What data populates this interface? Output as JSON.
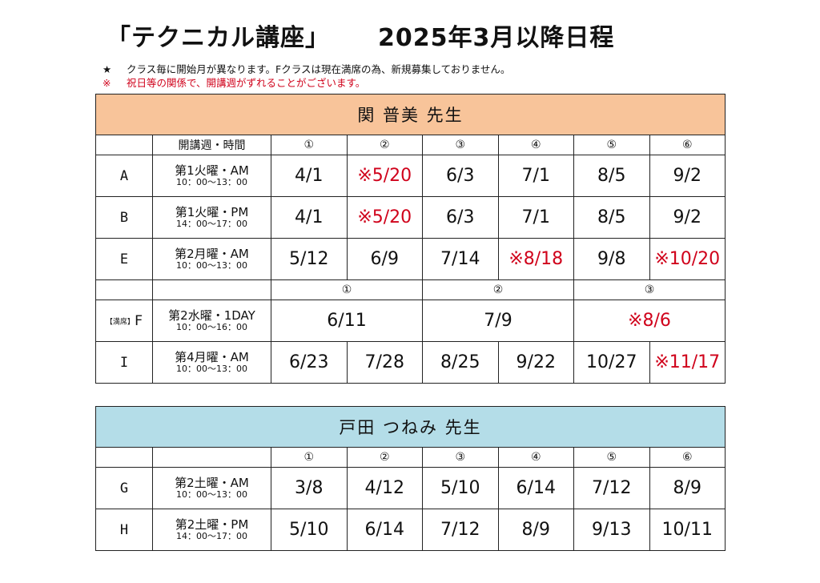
{
  "title": "「テクニカル講座」",
  "subtitle": "2025年3月以降日程",
  "notes": [
    {
      "mark": "★",
      "text": "クラス毎に開始月が異なります。Fクラスは現在満席の為、新規募集しておりません。"
    },
    {
      "mark": "※",
      "text": "祝日等の関係で、開講週がずれることがございます。"
    }
  ],
  "colors": {
    "teacher1_bg": "#f8c49a",
    "teacher2_bg": "#b4dde8",
    "highlight": "#d0021b"
  },
  "teacher1": {
    "name": "関 普美 先生",
    "header_label": "開講週・時間",
    "numbers": [
      "①",
      "②",
      "③",
      "④",
      "⑤",
      "⑥"
    ],
    "rows": [
      {
        "cls": "A",
        "day": "第1火曜・AM",
        "time": "10：00〜13：00",
        "dates": [
          "4/1",
          "※5/20",
          "6/3",
          "7/1",
          "8/5",
          "9/2"
        ]
      },
      {
        "cls": "B",
        "day": "第1火曜・PM",
        "time": "14：00〜17：00",
        "dates": [
          "4/1",
          "※5/20",
          "6/3",
          "7/1",
          "8/5",
          "9/2"
        ]
      },
      {
        "cls": "E",
        "day": "第2月曜・AM",
        "time": "10：00〜13：00",
        "dates": [
          "5/12",
          "6/9",
          "7/14",
          "※8/18",
          "9/8",
          "※10/20"
        ]
      }
    ],
    "f_numbers": [
      "①",
      "②",
      "③"
    ],
    "f_row": {
      "badge": "【満席】",
      "cls": "F",
      "day": "第2水曜・1DAY",
      "time": "10：00〜16：00",
      "dates": [
        "6/11",
        "7/9",
        "※8/6"
      ]
    },
    "i_row": {
      "cls": "I",
      "day": "第4月曜・AM",
      "time": "10：00〜13：00",
      "dates": [
        "6/23",
        "7/28",
        "8/25",
        "9/22",
        "10/27",
        "※11/17"
      ]
    }
  },
  "teacher2": {
    "name": "戸田 つねみ 先生",
    "numbers": [
      "①",
      "②",
      "③",
      "④",
      "⑤",
      "⑥"
    ],
    "rows": [
      {
        "cls": "G",
        "day": "第2土曜・AM",
        "time": "10：00〜13：00",
        "dates": [
          "3/8",
          "4/12",
          "5/10",
          "6/14",
          "7/12",
          "8/9"
        ]
      },
      {
        "cls": "H",
        "day": "第2土曜・PM",
        "time": "14：00〜17：00",
        "dates": [
          "5/10",
          "6/14",
          "7/12",
          "8/9",
          "9/13",
          "10/11"
        ]
      }
    ]
  }
}
